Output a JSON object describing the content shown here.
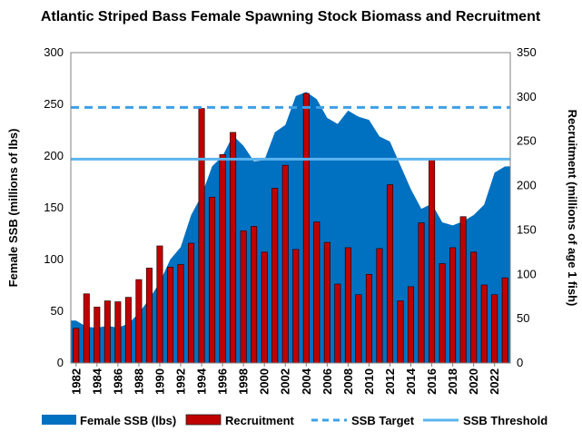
{
  "chart_data": {
    "type": "bar",
    "title": "Atlantic Striped Bass Female Spawning Stock Biomass and Recruitment",
    "ylabel_left": "Female SSB (millions of lbs)",
    "ylabel_right": "Recruitment (millions of age 1 fish)",
    "ylim_left": [
      0,
      300
    ],
    "ylim_right": [
      0,
      350
    ],
    "yticks_left": [
      "0",
      "50",
      "100",
      "150",
      "200",
      "250",
      "300"
    ],
    "yticks_right": [
      "0",
      "50",
      "100",
      "150",
      "200",
      "250",
      "300",
      "350"
    ],
    "x": [
      1982,
      1983,
      1984,
      1985,
      1986,
      1987,
      1988,
      1989,
      1990,
      1991,
      1992,
      1993,
      1994,
      1995,
      1996,
      1997,
      1998,
      1999,
      2000,
      2001,
      2002,
      2003,
      2004,
      2005,
      2006,
      2007,
      2008,
      2009,
      2010,
      2011,
      2012,
      2013,
      2014,
      2015,
      2016,
      2017,
      2018,
      2019,
      2020,
      2021,
      2022,
      2023
    ],
    "xtick_labels": [
      "1982",
      "1984",
      "1986",
      "1988",
      "1990",
      "1992",
      "1994",
      "1996",
      "1998",
      "2000",
      "2002",
      "2004",
      "2006",
      "2008",
      "2010",
      "2012",
      "2014",
      "2016",
      "2018",
      "2020",
      "2022"
    ],
    "series": [
      {
        "name": "Female SSB (lbs)",
        "type": "area",
        "axis": "left",
        "color": "#0070c0",
        "values": [
          41,
          35,
          34,
          36,
          34,
          38,
          48,
          62,
          78,
          100,
          112,
          143,
          162,
          190,
          200,
          220,
          210,
          195,
          196,
          223,
          230,
          258,
          262,
          255,
          237,
          231,
          244,
          238,
          235,
          219,
          214,
          191,
          168,
          149,
          154,
          136,
          133,
          137,
          143,
          153,
          184,
          190
        ]
      },
      {
        "name": "Recruitment",
        "type": "bar",
        "axis": "right",
        "color": "#c00000",
        "values": [
          39,
          78,
          63,
          70,
          69,
          74,
          94,
          107,
          132,
          108,
          111,
          135,
          287,
          187,
          235,
          260,
          149,
          154,
          125,
          197,
          223,
          128,
          304,
          159,
          136,
          89,
          130,
          77,
          100,
          129,
          201,
          70,
          86,
          158,
          229,
          112,
          130,
          165,
          125,
          88,
          77,
          96
        ]
      },
      {
        "name": "SSB Target",
        "type": "line",
        "axis": "left",
        "style": "dashed",
        "color": "#3fa0e6",
        "value": 247
      },
      {
        "name": "SSB Threshold",
        "type": "line",
        "axis": "left",
        "style": "solid",
        "color": "#5bb4ee",
        "value": 197
      }
    ],
    "legend_position": "bottom",
    "grid": false
  }
}
